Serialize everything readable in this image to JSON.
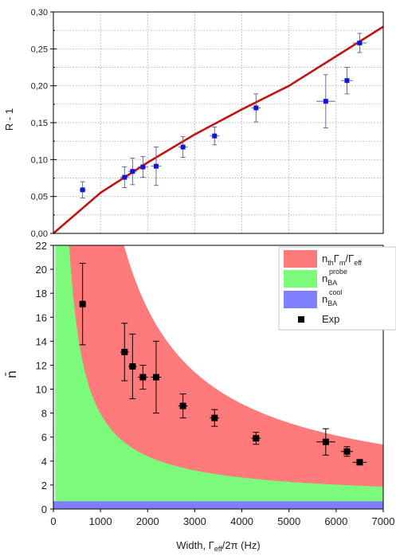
{
  "chart_data": [
    {
      "type": "scatter",
      "ylabel": "R - 1",
      "xlim": [
        0,
        7000
      ],
      "ylim": [
        0,
        0.3
      ],
      "yticks": [
        "0,00",
        "0,05",
        "0,10",
        "0,15",
        "0,20",
        "0,25",
        "0,30"
      ],
      "grid": "dotted",
      "series": [
        {
          "points": [
            {
              "x": 620,
              "y": 0.059,
              "yerr": 0.011,
              "xerr": 70
            },
            {
              "x": 1510,
              "y": 0.076,
              "yerr": 0.014,
              "xerr": 90
            },
            {
              "x": 1680,
              "y": 0.084,
              "yerr": 0.018,
              "xerr": 90
            },
            {
              "x": 1900,
              "y": 0.09,
              "yerr": 0.014,
              "xerr": 110
            },
            {
              "x": 2180,
              "y": 0.091,
              "yerr": 0.026,
              "xerr": 110
            },
            {
              "x": 2750,
              "y": 0.117,
              "yerr": 0.014,
              "xerr": 100
            },
            {
              "x": 3420,
              "y": 0.132,
              "yerr": 0.012,
              "xerr": 100
            },
            {
              "x": 4300,
              "y": 0.17,
              "yerr": 0.019,
              "xerr": 100
            },
            {
              "x": 5780,
              "y": 0.179,
              "yerr": 0.036,
              "xerr": 200
            },
            {
              "x": 6230,
              "y": 0.207,
              "yerr": 0.018,
              "xerr": 130
            },
            {
              "x": 6500,
              "y": 0.258,
              "yerr": 0.013,
              "xerr": 150
            }
          ],
          "color": "#1515d8"
        },
        {
          "x": [
            0,
            1000,
            2000,
            3000,
            4000,
            5000,
            6000,
            7000
          ],
          "y": [
            0,
            0.055,
            0.096,
            0.134,
            0.168,
            0.2,
            0.24,
            0.28
          ],
          "color": "#c01515"
        }
      ]
    },
    {
      "type": "area",
      "ylabel": "n̄",
      "xlabel_main": "Width,  Γ",
      "xlabel_sub": "eff",
      "xlabel_tail": "/2π (Hz)",
      "xlim": [
        0,
        7000
      ],
      "ylim": [
        0,
        22
      ],
      "xticks": [
        "0",
        "1000",
        "2000",
        "3000",
        "4000",
        "5000",
        "6000",
        "7000"
      ],
      "yticks": [
        "0",
        "2",
        "4",
        "6",
        "8",
        "10",
        "12",
        "14",
        "16",
        "18",
        "20",
        "22"
      ],
      "model": {
        "cool_level": 0.65,
        "probe_coeff": 7100,
        "probe_offset": 0.2,
        "thermal_coeff": 24600
      },
      "legend": [
        {
          "parts": [
            [
              "n",
              ""
            ],
            [
              "th",
              "sub"
            ],
            [
              "Γ",
              ""
            ],
            [
              "m",
              "sub"
            ],
            [
              "/Γ",
              ""
            ],
            [
              "eff",
              "sub"
            ]
          ],
          "color": "#ff7b7b"
        },
        {
          "parts": [
            [
              "n",
              ""
            ],
            [
              "BA",
              "sub"
            ],
            [
              "probe",
              "sup"
            ]
          ],
          "color": "#7cfa7c"
        },
        {
          "parts": [
            [
              "n",
              ""
            ],
            [
              "BA",
              "sub"
            ],
            [
              "cool",
              "sup"
            ]
          ],
          "color": "#8080ff"
        },
        {
          "parts": [
            [
              "Exp",
              ""
            ]
          ],
          "color": "#000000"
        }
      ],
      "points": [
        {
          "x": 620,
          "y": 17.1,
          "yerr": 3.4,
          "xerr": 70
        },
        {
          "x": 1510,
          "y": 13.1,
          "yerr": 2.4,
          "xerr": 90
        },
        {
          "x": 1680,
          "y": 11.9,
          "yerr": 2.7,
          "xerr": 90
        },
        {
          "x": 1900,
          "y": 11.0,
          "yerr": 1.0,
          "xerr": 110
        },
        {
          "x": 2180,
          "y": 11.0,
          "yerr": 3.0,
          "xerr": 110
        },
        {
          "x": 2750,
          "y": 8.6,
          "yerr": 1.0,
          "xerr": 100
        },
        {
          "x": 3420,
          "y": 7.6,
          "yerr": 0.7,
          "xerr": 100
        },
        {
          "x": 4300,
          "y": 5.9,
          "yerr": 0.5,
          "xerr": 100
        },
        {
          "x": 5780,
          "y": 5.6,
          "yerr": 1.1,
          "xerr": 200
        },
        {
          "x": 6230,
          "y": 4.8,
          "yerr": 0.4,
          "xerr": 130
        },
        {
          "x": 6500,
          "y": 3.9,
          "yerr": 0.15,
          "xerr": 150
        }
      ]
    }
  ]
}
